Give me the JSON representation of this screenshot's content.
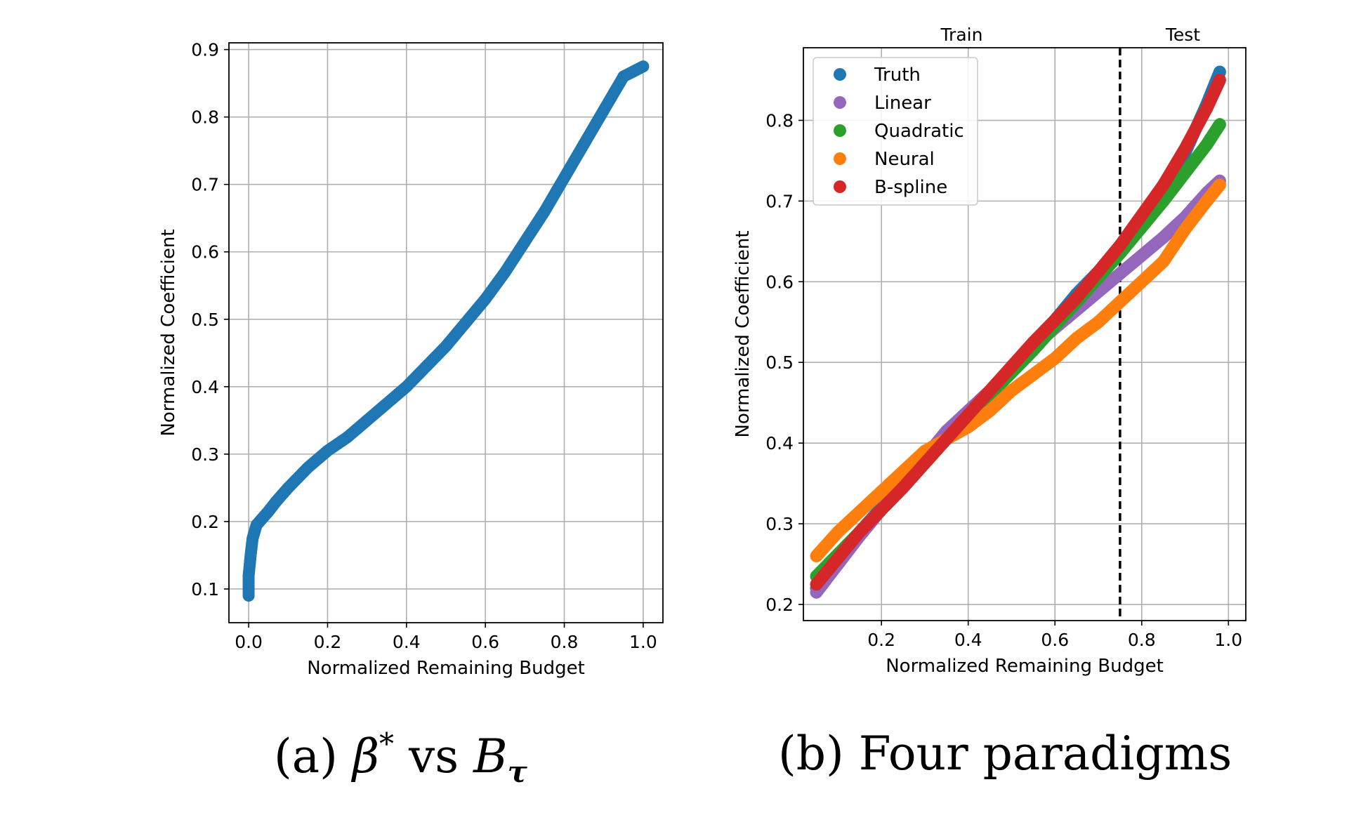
{
  "colors": {
    "Truth": "#1f77b4",
    "Linear": "#9467bd",
    "Quadratic": "#2ca02c",
    "Neural": "#ff7f0e",
    "B-spline": "#d62728"
  },
  "captions": {
    "a": {
      "label": "(a)",
      "sym1": "β",
      "sup": "*",
      "mid": "vs",
      "sym2": "B",
      "sub": "τ"
    },
    "b": {
      "text": "(b) Four paradigms"
    }
  },
  "chart_data": [
    {
      "type": "scatter",
      "title": "",
      "xlabel": "Normalized Remaining Budget",
      "ylabel": "Normalized Coefficient",
      "xlim": [
        -0.05,
        1.05
      ],
      "ylim": [
        0.05,
        0.91
      ],
      "xticks": [
        "0.0",
        "0.2",
        "0.4",
        "0.6",
        "0.8",
        "1.0"
      ],
      "yticks": [
        "0.1",
        "0.2",
        "0.3",
        "0.4",
        "0.5",
        "0.6",
        "0.7",
        "0.8",
        "0.9"
      ],
      "grid": true,
      "series": [
        {
          "color_key": "Truth",
          "x": [
            0.0,
            0.0,
            0.005,
            0.01,
            0.02,
            0.035,
            0.05,
            0.07,
            0.1,
            0.15,
            0.2,
            0.25,
            0.3,
            0.35,
            0.4,
            0.45,
            0.5,
            0.55,
            0.6,
            0.65,
            0.7,
            0.75,
            0.8,
            0.85,
            0.9,
            0.95,
            1.0
          ],
          "y": [
            0.09,
            0.12,
            0.15,
            0.175,
            0.195,
            0.205,
            0.215,
            0.23,
            0.25,
            0.28,
            0.305,
            0.325,
            0.35,
            0.375,
            0.4,
            0.43,
            0.46,
            0.495,
            0.53,
            0.57,
            0.615,
            0.66,
            0.71,
            0.76,
            0.81,
            0.86,
            0.875
          ]
        }
      ]
    },
    {
      "type": "scatter",
      "title": "",
      "xlabel": "Normalized Remaining Budget",
      "ylabel": "Normalized Coefficient",
      "xlim": [
        0.02,
        1.04
      ],
      "ylim": [
        0.18,
        0.89
      ],
      "xticks": [
        "0.2",
        "0.4",
        "0.6",
        "0.8",
        "1.0"
      ],
      "yticks": [
        "0.2",
        "0.3",
        "0.4",
        "0.5",
        "0.6",
        "0.7",
        "0.8"
      ],
      "grid": true,
      "legend": "top-left",
      "split_x": 0.75,
      "region_labels": [
        "Train",
        "Test"
      ],
      "series": [
        {
          "name": "Truth",
          "x": [
            0.05,
            0.15,
            0.25,
            0.35,
            0.45,
            0.55,
            0.65,
            0.75,
            0.85,
            0.9,
            0.95,
            0.98
          ],
          "y": [
            0.22,
            0.29,
            0.35,
            0.41,
            0.465,
            0.52,
            0.585,
            0.64,
            0.72,
            0.76,
            0.82,
            0.86
          ]
        },
        {
          "name": "Linear",
          "x": [
            0.05,
            0.15,
            0.25,
            0.35,
            0.45,
            0.55,
            0.65,
            0.75,
            0.85,
            0.9,
            0.95,
            0.98
          ],
          "y": [
            0.215,
            0.285,
            0.35,
            0.415,
            0.465,
            0.52,
            0.565,
            0.61,
            0.655,
            0.68,
            0.71,
            0.725
          ]
        },
        {
          "name": "Quadratic",
          "x": [
            0.05,
            0.15,
            0.25,
            0.35,
            0.45,
            0.55,
            0.65,
            0.75,
            0.85,
            0.9,
            0.95,
            0.98
          ],
          "y": [
            0.235,
            0.29,
            0.345,
            0.405,
            0.46,
            0.515,
            0.575,
            0.635,
            0.7,
            0.735,
            0.77,
            0.795
          ]
        },
        {
          "name": "Neural",
          "x": [
            0.05,
            0.1,
            0.15,
            0.2,
            0.25,
            0.3,
            0.35,
            0.4,
            0.45,
            0.5,
            0.55,
            0.6,
            0.65,
            0.7,
            0.75,
            0.8,
            0.85,
            0.9,
            0.95,
            0.98
          ],
          "y": [
            0.26,
            0.29,
            0.315,
            0.34,
            0.365,
            0.39,
            0.405,
            0.42,
            0.44,
            0.465,
            0.485,
            0.505,
            0.53,
            0.55,
            0.575,
            0.6,
            0.625,
            0.665,
            0.7,
            0.72
          ]
        },
        {
          "name": "B-spline",
          "x": [
            0.05,
            0.15,
            0.25,
            0.35,
            0.45,
            0.55,
            0.65,
            0.75,
            0.85,
            0.9,
            0.95,
            0.98
          ],
          "y": [
            0.225,
            0.29,
            0.345,
            0.405,
            0.465,
            0.525,
            0.58,
            0.645,
            0.72,
            0.765,
            0.815,
            0.85
          ]
        }
      ]
    }
  ]
}
